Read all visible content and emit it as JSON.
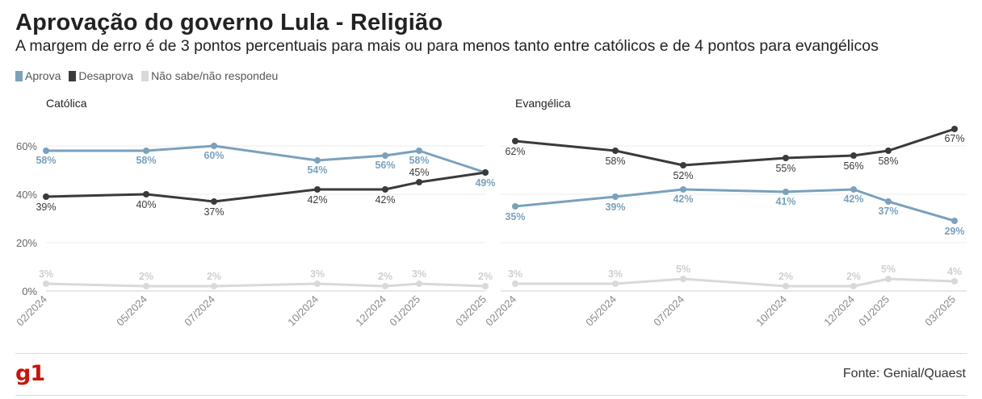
{
  "title": "Aprovação do governo Lula - Religião",
  "subtitle": "A margem de erro é de 3 pontos percentuais para mais ou para menos tanto entre católicos e de 4 pontos para evangélicos",
  "legend": [
    {
      "label": "Aprova",
      "color": "#7aa1bd"
    },
    {
      "label": "Desaprova",
      "color": "#3a3a3a"
    },
    {
      "label": "Não sabe/não respondeu",
      "color": "#d9d9d9"
    }
  ],
  "source": "Fonte: Genial/Quaest",
  "logo": "g1",
  "chart_data": [
    {
      "type": "line",
      "title": "Católica",
      "x": [
        "02/2024",
        "05/2024",
        "07/2024",
        "10/2024",
        "12/2024",
        "01/2025",
        "03/2025"
      ],
      "ylim": [
        0,
        70
      ],
      "yticks": [
        "0%",
        "20%",
        "40%",
        "60%"
      ],
      "grid": true,
      "series": [
        {
          "name": "Aprova",
          "color": "#7aa1bd",
          "values": [
            58,
            58,
            60,
            54,
            56,
            58,
            49
          ],
          "labels": [
            "58%",
            "58%",
            "60%",
            "54%",
            "56%",
            "58%",
            "49%"
          ]
        },
        {
          "name": "Desaprova",
          "color": "#3a3a3a",
          "values": [
            39,
            40,
            37,
            42,
            42,
            45,
            49
          ],
          "labels": [
            "39%",
            "40%",
            "37%",
            "42%",
            "42%",
            "45%",
            ""
          ]
        },
        {
          "name": "Não sabe/não respondeu",
          "color": "#d9d9d9",
          "values": [
            3,
            2,
            2,
            3,
            2,
            3,
            2
          ],
          "labels": [
            "3%",
            "2%",
            "2%",
            "3%",
            "2%",
            "3%",
            "2%"
          ]
        }
      ]
    },
    {
      "type": "line",
      "title": "Evangélica",
      "x": [
        "02/2024",
        "05/2024",
        "07/2024",
        "10/2024",
        "12/2024",
        "01/2025",
        "03/2025"
      ],
      "ylim": [
        0,
        70
      ],
      "yticks": [],
      "grid": true,
      "series": [
        {
          "name": "Aprova",
          "color": "#7aa1bd",
          "values": [
            35,
            39,
            42,
            41,
            42,
            37,
            29
          ],
          "labels": [
            "35%",
            "39%",
            "42%",
            "41%",
            "42%",
            "37%",
            "29%"
          ]
        },
        {
          "name": "Desaprova",
          "color": "#3a3a3a",
          "values": [
            62,
            58,
            52,
            55,
            56,
            58,
            67
          ],
          "labels": [
            "62%",
            "58%",
            "52%",
            "55%",
            "56%",
            "58%",
            "67%"
          ]
        },
        {
          "name": "Não sabe/não respondeu",
          "color": "#d9d9d9",
          "values": [
            3,
            3,
            5,
            2,
            2,
            5,
            4
          ],
          "labels": [
            "3%",
            "3%",
            "5%",
            "2%",
            "2%",
            "5%",
            "4%"
          ]
        }
      ]
    }
  ]
}
